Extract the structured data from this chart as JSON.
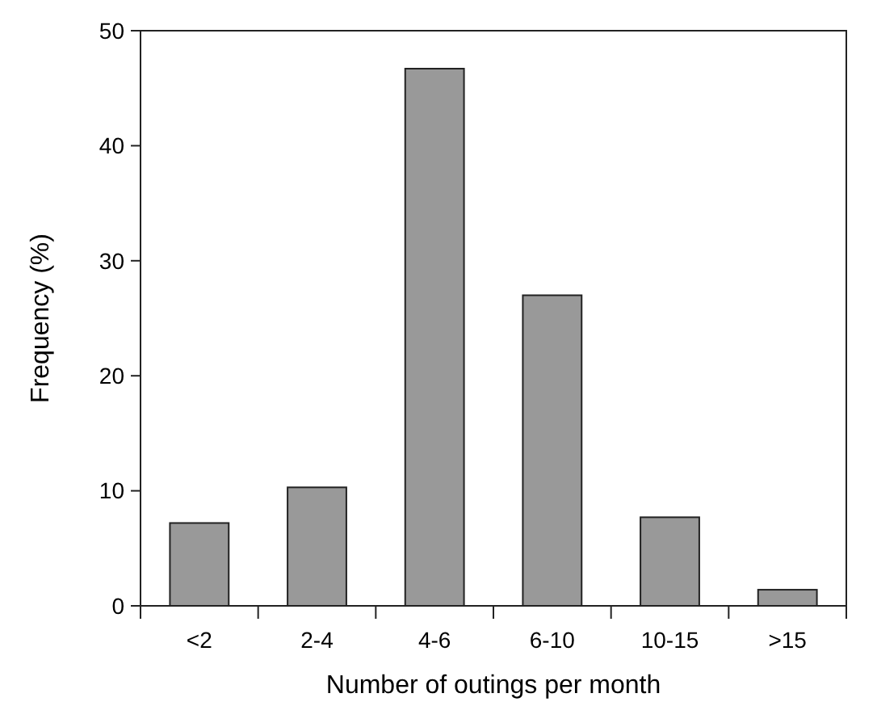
{
  "chart_data": {
    "type": "bar",
    "xlabel": "Number of outings per month",
    "ylabel": "Frequency (%)",
    "categories": [
      "<2",
      "2-4",
      "4-6",
      "6-10",
      "10-15",
      ">15"
    ],
    "values": [
      7.2,
      10.3,
      46.7,
      27.0,
      7.7,
      1.4
    ],
    "color": "#999999",
    "ylim": [
      0,
      50
    ],
    "yticks": [
      0,
      10,
      20,
      30,
      40,
      50
    ],
    "grid": false
  }
}
